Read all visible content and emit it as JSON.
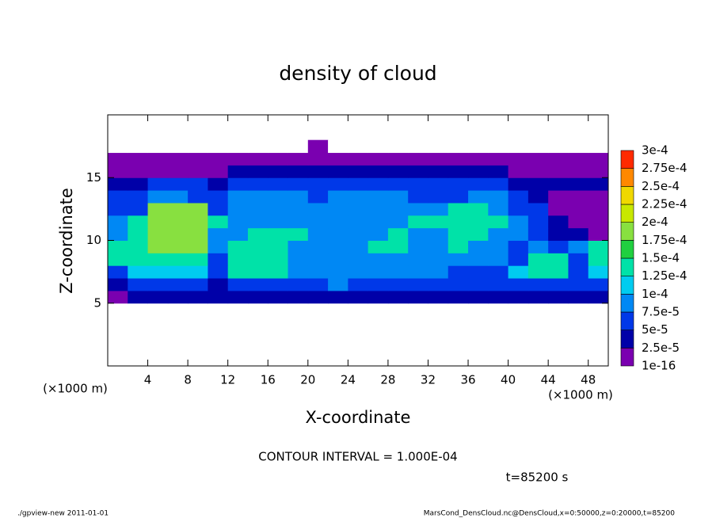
{
  "chart_data": {
    "type": "heatmap",
    "title": "density of cloud",
    "xlabel": "X-coordinate",
    "ylabel": "Z-coordinate",
    "x_unit": "(×1000 m)",
    "y_unit": "(×1000 m)",
    "contour_note": "CONTOUR INTERVAL = 1.000E-04",
    "time_note": "t=85200 s",
    "footer_left": "./gpview-new  2011-01-01",
    "footer_right": "MarsCond_DensCloud.nc@DensCloud,x=0:50000,z=0:20000,t=85200",
    "xlim": [
      0,
      50
    ],
    "ylim": [
      0,
      20
    ],
    "xticks": [
      4,
      8,
      12,
      16,
      20,
      24,
      28,
      32,
      36,
      40,
      44,
      48
    ],
    "yticks": [
      5,
      10,
      15
    ],
    "x_edges": [
      0,
      2,
      4,
      6,
      8,
      10,
      12,
      14,
      16,
      18,
      20,
      22,
      24,
      26,
      28,
      30,
      32,
      34,
      36,
      38,
      40,
      42,
      44,
      46,
      48,
      50
    ],
    "z_edges": [
      5,
      6,
      7,
      8,
      9,
      10,
      11,
      12,
      13,
      14,
      15,
      16,
      17,
      18
    ],
    "levels": [
      {
        "value": 1e-16,
        "label": "1e-16"
      },
      {
        "value": 2.5e-05,
        "label": "2.5e-5"
      },
      {
        "value": 5e-05,
        "label": "5e-5"
      },
      {
        "value": 7.5e-05,
        "label": "7.5e-5"
      },
      {
        "value": 0.0001,
        "label": "1e-4"
      },
      {
        "value": 0.000125,
        "label": "1.25e-4"
      },
      {
        "value": 0.00015,
        "label": "1.5e-4"
      },
      {
        "value": 0.000175,
        "label": "1.75e-4"
      },
      {
        "value": 0.0002,
        "label": "2e-4"
      },
      {
        "value": 0.000225,
        "label": "2.25e-4"
      },
      {
        "value": 0.00025,
        "label": "2.5e-4"
      },
      {
        "value": 0.000275,
        "label": "2.75e-4"
      },
      {
        "value": 0.0003,
        "label": "3e-4"
      }
    ],
    "colors": [
      "#7a00b0",
      "#0000a8",
      "#0038e8",
      "#0088f4",
      "#00ccf0",
      "#00e2a8",
      "#20d040",
      "#88e040",
      "#c8e800",
      "#f0d800",
      "#ff8800",
      "#ff2a00",
      "#ff8888"
    ],
    "z": [
      [
        5e-06,
        3.5e-05,
        3.5e-05,
        3.5e-05,
        3.5e-05,
        3.5e-05,
        3.5e-05,
        3.5e-05,
        3.5e-05,
        3.5e-05,
        3.5e-05,
        3.5e-05,
        3.5e-05,
        3.5e-05,
        3.5e-05,
        3.5e-05,
        3.5e-05,
        3.5e-05,
        3.5e-05,
        3.5e-05,
        3.5e-05,
        3.5e-05,
        3.5e-05,
        3.5e-05,
        3.5e-05
      ],
      [
        3.5e-05,
        6e-05,
        6e-05,
        6e-05,
        6e-05,
        3.5e-05,
        6e-05,
        6e-05,
        6e-05,
        6e-05,
        6e-05,
        8.5e-05,
        6e-05,
        6e-05,
        6e-05,
        6e-05,
        6e-05,
        6e-05,
        6e-05,
        6e-05,
        6e-05,
        6e-05,
        6e-05,
        6e-05,
        6e-05
      ],
      [
        6e-05,
        0.00011,
        0.00011,
        0.00011,
        0.00011,
        6e-05,
        0.00014,
        0.00014,
        0.00014,
        8.5e-05,
        8.5e-05,
        8.5e-05,
        8.5e-05,
        8.5e-05,
        8.5e-05,
        8.5e-05,
        8.5e-05,
        6e-05,
        6e-05,
        6e-05,
        0.00011,
        0.00014,
        0.00014,
        6e-05,
        0.00011
      ],
      [
        0.00014,
        0.00014,
        0.00014,
        0.00014,
        0.00014,
        6e-05,
        0.00014,
        0.00014,
        0.00014,
        8.5e-05,
        8.5e-05,
        8.5e-05,
        8.5e-05,
        8.5e-05,
        8.5e-05,
        8.5e-05,
        8.5e-05,
        8.5e-05,
        8.5e-05,
        8.5e-05,
        6e-05,
        0.00014,
        0.00014,
        6e-05,
        0.00014
      ],
      [
        0.00014,
        0.00014,
        0.00019,
        0.00019,
        0.00019,
        8.5e-05,
        0.00014,
        0.00014,
        0.00014,
        8.5e-05,
        8.5e-05,
        8.5e-05,
        8.5e-05,
        0.00014,
        0.00014,
        8.5e-05,
        8.5e-05,
        0.00014,
        8.5e-05,
        8.5e-05,
        6e-05,
        8.5e-05,
        6e-05,
        8.5e-05,
        0.00014
      ],
      [
        8.5e-05,
        0.00014,
        0.00019,
        0.00019,
        0.00019,
        8.5e-05,
        8.5e-05,
        0.00014,
        0.00014,
        0.00014,
        8.5e-05,
        8.5e-05,
        8.5e-05,
        8.5e-05,
        0.00014,
        8.5e-05,
        8.5e-05,
        0.00014,
        0.00014,
        8.5e-05,
        8.5e-05,
        6e-05,
        3.5e-05,
        3.5e-05,
        5e-06
      ],
      [
        8.5e-05,
        0.00014,
        0.00019,
        0.00019,
        0.00019,
        0.00014,
        8.5e-05,
        8.5e-05,
        8.5e-05,
        8.5e-05,
        8.5e-05,
        8.5e-05,
        8.5e-05,
        8.5e-05,
        8.5e-05,
        0.00014,
        0.00014,
        0.00014,
        0.00014,
        0.00014,
        8.5e-05,
        6e-05,
        3.5e-05,
        5e-06,
        5e-06
      ],
      [
        6e-05,
        6e-05,
        0.00019,
        0.00019,
        0.00019,
        6e-05,
        8.5e-05,
        8.5e-05,
        8.5e-05,
        8.5e-05,
        8.5e-05,
        8.5e-05,
        8.5e-05,
        8.5e-05,
        8.5e-05,
        8.5e-05,
        8.5e-05,
        0.00014,
        0.00014,
        8.5e-05,
        6e-05,
        6e-05,
        5e-06,
        5e-06,
        5e-06
      ],
      [
        6e-05,
        6e-05,
        8.5e-05,
        8.5e-05,
        6e-05,
        6e-05,
        8.5e-05,
        8.5e-05,
        8.5e-05,
        8.5e-05,
        6e-05,
        8.5e-05,
        8.5e-05,
        8.5e-05,
        8.5e-05,
        6e-05,
        6e-05,
        6e-05,
        8.5e-05,
        8.5e-05,
        6e-05,
        3.5e-05,
        5e-06,
        5e-06,
        5e-06
      ],
      [
        3.5e-05,
        3.5e-05,
        6e-05,
        6e-05,
        6e-05,
        3.5e-05,
        6e-05,
        6e-05,
        6e-05,
        6e-05,
        6e-05,
        6e-05,
        6e-05,
        6e-05,
        6e-05,
        6e-05,
        6e-05,
        6e-05,
        6e-05,
        6e-05,
        3.5e-05,
        3.5e-05,
        3.5e-05,
        3.5e-05,
        3.5e-05
      ],
      [
        5e-06,
        5e-06,
        5e-06,
        5e-06,
        5e-06,
        5e-06,
        3.5e-05,
        3.5e-05,
        3.5e-05,
        3.5e-05,
        3.5e-05,
        3.5e-05,
        3.5e-05,
        3.5e-05,
        3.5e-05,
        3.5e-05,
        3.5e-05,
        3.5e-05,
        3.5e-05,
        3.5e-05,
        5e-06,
        5e-06,
        5e-06,
        5e-06,
        5e-06
      ],
      [
        5e-06,
        5e-06,
        5e-06,
        5e-06,
        5e-06,
        5e-06,
        5e-06,
        5e-06,
        5e-06,
        5e-06,
        5e-06,
        5e-06,
        5e-06,
        5e-06,
        5e-06,
        5e-06,
        5e-06,
        5e-06,
        5e-06,
        5e-06,
        5e-06,
        5e-06,
        5e-06,
        5e-06,
        5e-06
      ],
      [
        0,
        0,
        0,
        0,
        0,
        0,
        0,
        0,
        0,
        0,
        5e-06,
        0,
        0,
        0,
        0,
        0,
        0,
        0,
        0,
        0,
        0,
        0,
        0,
        0,
        0
      ]
    ]
  }
}
